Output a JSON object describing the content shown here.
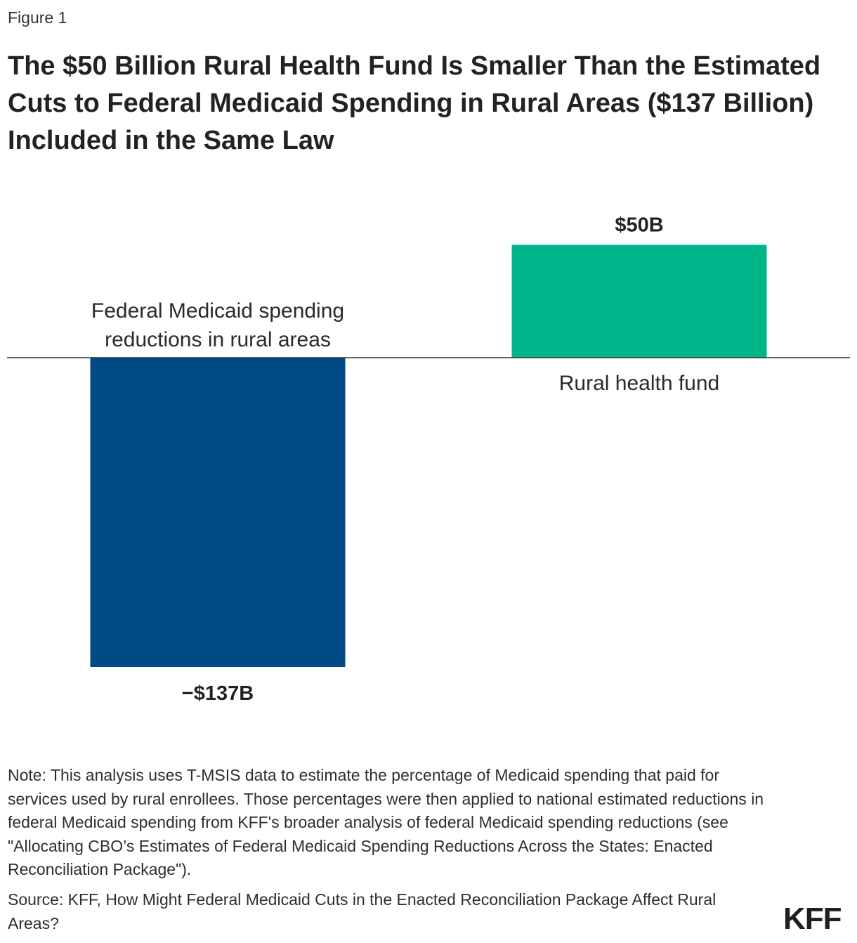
{
  "figure_label": "Figure 1",
  "title": "The $50 Billion Rural Health Fund Is Smaller Than the Estimated Cuts to Federal Medicaid Spending in Rural Areas ($137 Billion) Included in the Same Law",
  "note": "Note: This analysis uses T-MSIS data to estimate the percentage of Medicaid spending that paid for services used by rural enrollees. Those percentages were then applied to national estimated reductions in federal Medicaid spending from KFF's broader analysis of federal Medicaid spending reductions (see \"Allocating CBO’s Estimates of Federal Medicaid Spending Reductions Across the States: Enacted Reconciliation Package\").",
  "source": "Source: KFF, How Might Federal Medicaid Cuts in the Enacted Reconciliation Package Affect Rural Areas?",
  "logo_text": "KFF",
  "chart_data": {
    "type": "bar",
    "categories": [
      [
        "Federal Medicaid spending",
        "reductions in rural areas"
      ],
      [
        "Rural health fund"
      ]
    ],
    "values": [
      -137,
      50
    ],
    "value_labels": [
      "−$137B",
      "$50B"
    ],
    "unit": "billion dollars",
    "colors": [
      "#004b87",
      "#00b48a"
    ],
    "ylim": [
      -137,
      50
    ],
    "grid": false
  }
}
